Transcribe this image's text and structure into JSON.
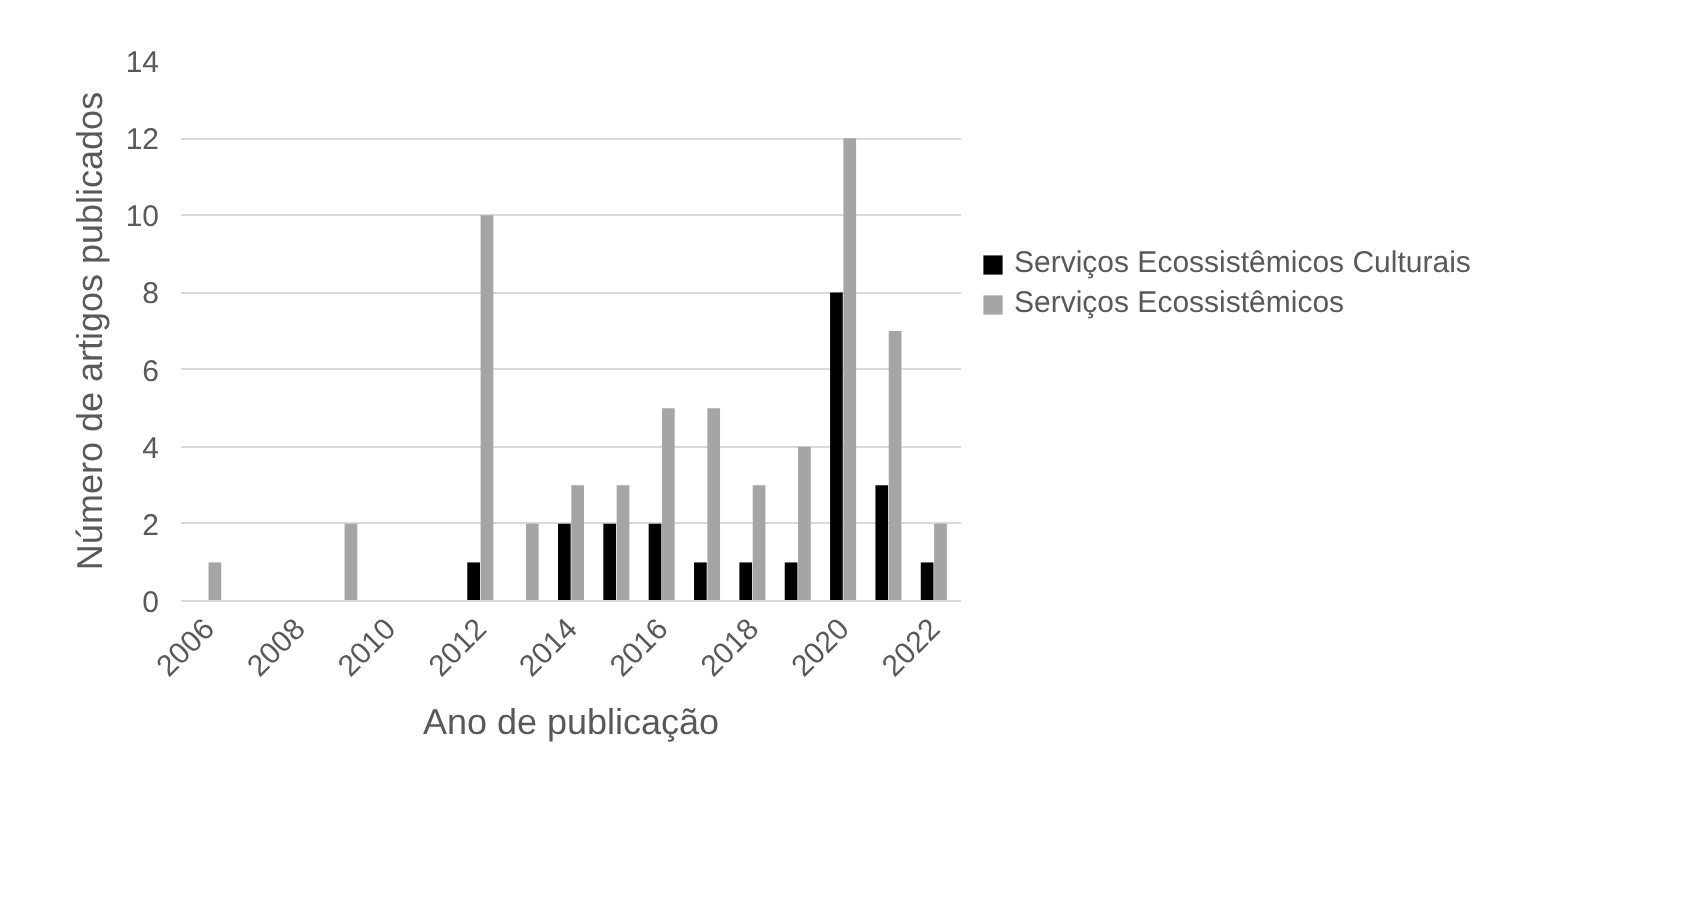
{
  "chart_data": {
    "type": "bar",
    "xlabel": "Ano de publicação",
    "ylabel": "Número de artigos publicados",
    "categories": [
      "2006",
      null,
      "2008",
      null,
      "2010",
      null,
      "2012",
      null,
      "2014",
      null,
      "2016",
      null,
      "2018",
      null,
      "2020",
      null,
      "2022"
    ],
    "series": [
      {
        "name": "Serviços Ecossistêmicos Culturais",
        "color": "#000000",
        "values": [
          null,
          null,
          null,
          null,
          null,
          null,
          1,
          null,
          2,
          2,
          2,
          1,
          1,
          1,
          8,
          3,
          1
        ]
      },
      {
        "name": "Serviços Ecossistêmicos",
        "color": "#a5a5a5",
        "values": [
          1,
          null,
          null,
          2,
          null,
          null,
          10,
          2,
          3,
          3,
          5,
          5,
          3,
          4,
          12,
          7,
          2
        ]
      }
    ],
    "ylim": [
      0,
      14
    ],
    "yticks": [
      0,
      2,
      4,
      6,
      8,
      10,
      12,
      14
    ],
    "grid": "y",
    "legend": "right"
  }
}
